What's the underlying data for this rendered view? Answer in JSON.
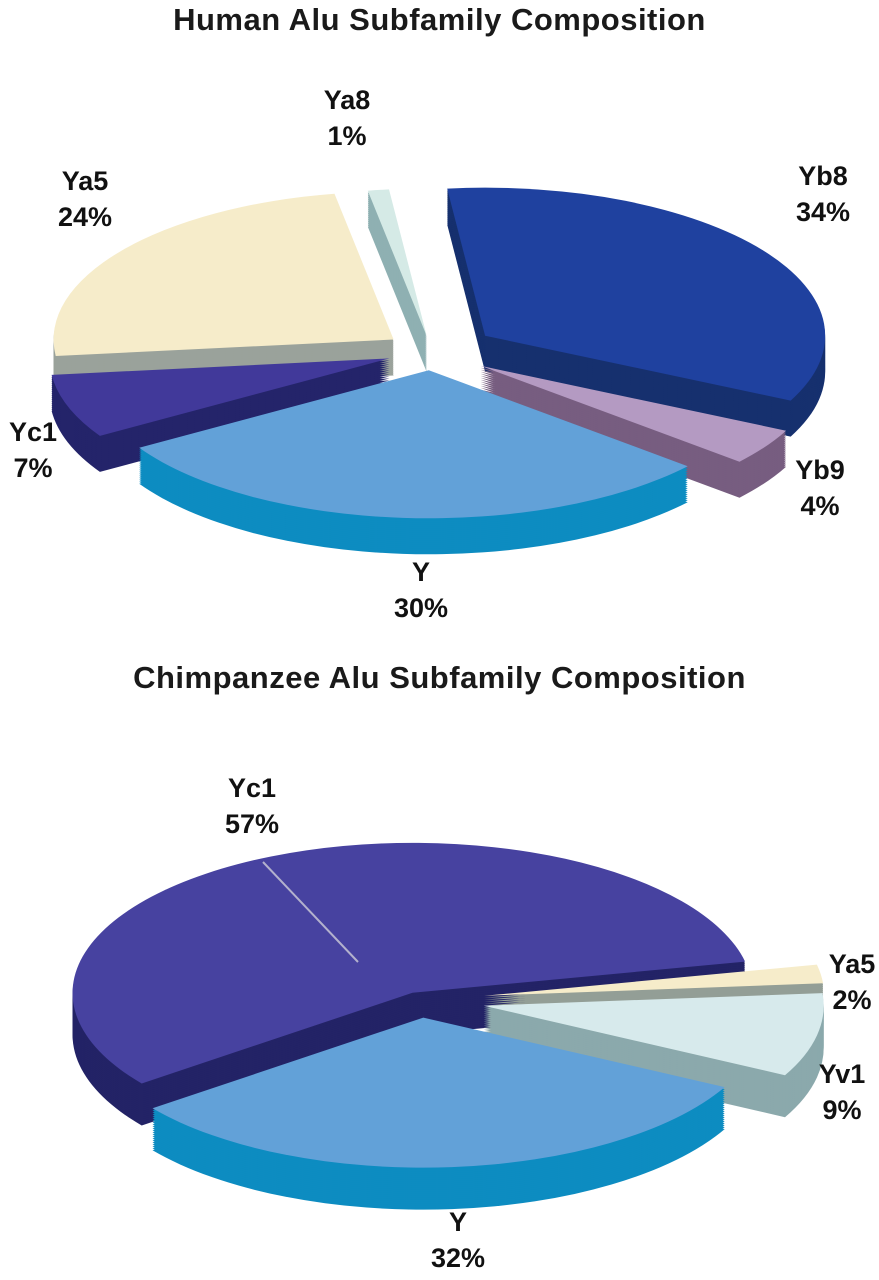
{
  "figure": {
    "background_color": "#ffffff",
    "text_color": "#111111"
  },
  "chart_data": [
    {
      "type": "pie",
      "style": "3d-exploded",
      "title": "Human Alu Subfamily Composition",
      "unit": "%",
      "labels": [
        "Ya8",
        "Yb8",
        "Yb9",
        "Y",
        "Yc1",
        "Ya5"
      ],
      "values": [
        1,
        34,
        4,
        30,
        7,
        24
      ],
      "colors_top": [
        "#d5eae6",
        "#1f419f",
        "#b49ac2",
        "#62a1d8",
        "#41399a",
        "#f6ecca"
      ],
      "colors_side": [
        "#8fb0b2",
        "#16306e",
        "#775d80",
        "#0d8cc1",
        "#24246a",
        "#9aa29b"
      ],
      "legend": "none",
      "data_labels": "category name and percent around slices"
    },
    {
      "type": "pie",
      "style": "3d-exploded",
      "title": "Chimpanzee Alu Subfamily Composition",
      "unit": "%",
      "labels": [
        "Ya5",
        "Yv1",
        "Y",
        "Yc1"
      ],
      "values": [
        2,
        9,
        32,
        57
      ],
      "colors_top": [
        "#f6ecca",
        "#d7eaec",
        "#62a1d8",
        "#4742a0"
      ],
      "colors_side": [
        "#939e96",
        "#8ba9ac",
        "#0d8cc1",
        "#232366"
      ],
      "legend": "none",
      "data_labels": "category name and percent around slices"
    }
  ]
}
